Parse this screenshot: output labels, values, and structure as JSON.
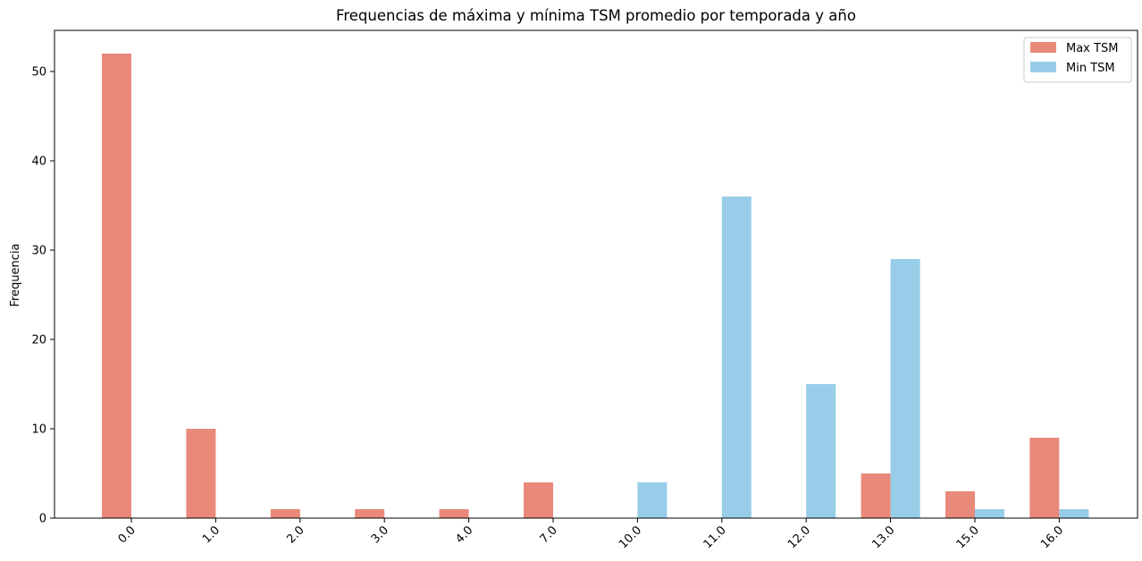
{
  "chart_data": {
    "type": "bar",
    "title": "Frequencias de máxima y mínima TSM promedio por temporada y año",
    "xlabel": "",
    "ylabel": "Frequencia",
    "categories": [
      "0.0",
      "1.0",
      "2.0",
      "3.0",
      "4.0",
      "7.0",
      "10.0",
      "11.0",
      "12.0",
      "13.0",
      "15.0",
      "16.0"
    ],
    "series": [
      {
        "name": "Max TSM",
        "color": "#e9897a",
        "values": [
          52,
          10,
          1,
          1,
          1,
          4,
          0,
          0,
          0,
          5,
          3,
          9
        ]
      },
      {
        "name": "Min TSM",
        "color": "#97cde8",
        "values": [
          0,
          0,
          0,
          0,
          0,
          0,
          4,
          36,
          15,
          29,
          1,
          1
        ]
      }
    ],
    "ylim": [
      0,
      54.6
    ],
    "yticks": [
      0,
      10,
      20,
      30,
      40,
      50
    ],
    "grid": false,
    "legend_position": "top-right"
  }
}
